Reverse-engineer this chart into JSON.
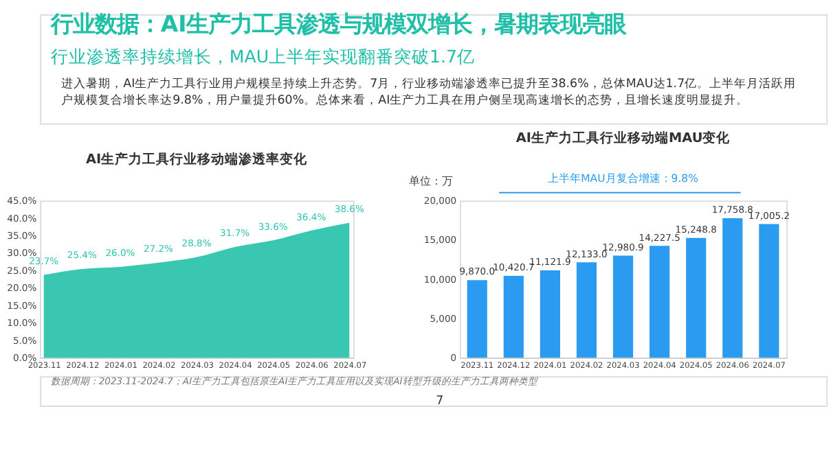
{
  "chart_data": [
    {
      "type": "area",
      "title": "AI生产力工具行业移动端渗透率变化",
      "categories": [
        "2023.11",
        "2024.12",
        "2024.01",
        "2024.02",
        "2024.03",
        "2024.04",
        "2024.05",
        "2024.06",
        "2024.07"
      ],
      "values": [
        23.7,
        25.4,
        26.0,
        27.2,
        28.8,
        31.7,
        33.6,
        36.4,
        38.6
      ],
      "value_labels": [
        "23.7%",
        "25.4%",
        "26.0%",
        "27.2%",
        "28.8%",
        "31.7%",
        "33.6%",
        "36.4%",
        "38.6%"
      ],
      "color": "#2ec4ad",
      "ylim": [
        0,
        45
      ],
      "yticks": [
        {
          "value": 0,
          "label": "0.0%"
        },
        {
          "value": 5,
          "label": "5.0%"
        },
        {
          "value": 10,
          "label": "10.0%"
        },
        {
          "value": 15,
          "label": "15.0%"
        },
        {
          "value": 20,
          "label": "20.0%"
        },
        {
          "value": 25,
          "label": "25.0%"
        },
        {
          "value": 30,
          "label": "30.0%"
        },
        {
          "value": 35,
          "label": "35.0%"
        },
        {
          "value": 40,
          "label": "40.0%"
        },
        {
          "value": 45,
          "label": "45.0%"
        }
      ],
      "grid": false,
      "legend": false,
      "marker": "none",
      "annotations": [
        "行业数据：AI生产力工具渗透与规模双增长，暑期表现亮眼",
        "行业渗透率持续增长，MAU上半年实现翻番突破1.7亿",
        "进入暑期，AI生产力工具行业用户规模呈持续上升态势。7月，行业移动端渗透率已提升至38.6%，总体MAU达1.7亿。上半年月活跃用户规模复合增长率达9.8%，用户量提升60%。总体来看，AI生产力工具在用户侧呈现高速增长的态势，且增长速度明显提升。",
        "数据周期：2023.11-2024.7；AI生产力工具包括原生AI生产力工具应用以及实现AI转型升级的生产力工具两种类型"
      ]
    },
    {
      "type": "bar",
      "title": "AI生产力工具行业移动端MAU变化",
      "categories": [
        "2023.11",
        "2024.12",
        "2024.01",
        "2024.02",
        "2024.03",
        "2024.04",
        "2024.05",
        "2024.06",
        "2024.07"
      ],
      "values": [
        9870.0,
        10420.7,
        11121.9,
        12133.0,
        12980.9,
        14227.5,
        15248.8,
        17758.8,
        17005.2
      ],
      "value_labels": [
        "9,870.0",
        "10,420.7",
        "11,121.9",
        "12,133.0",
        "12,980.9",
        "14,227.5",
        "15,248.8",
        "17,758.8",
        "17,005.2"
      ],
      "color": "#2a9bf0",
      "ylim": [
        0,
        20000
      ],
      "yticks": [
        0,
        {
          "value": 5000,
          "label": "5,000"
        },
        {
          "value": 10000,
          "label": "10,000"
        },
        {
          "value": 15000,
          "label": "15,000"
        },
        {
          "value": 20000,
          "label": "20,000"
        }
      ],
      "grid": false,
      "legend": false,
      "annotations": [
        "单位：万",
        "上半年MAU月复合增速：9.8%",
        "7"
      ]
    }
  ]
}
